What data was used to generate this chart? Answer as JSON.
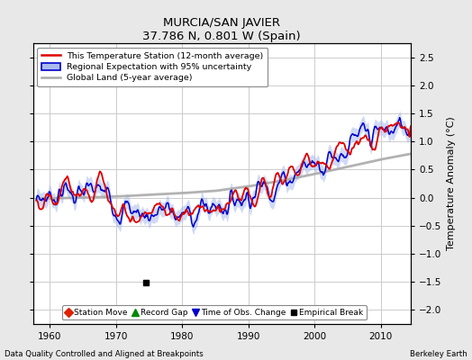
{
  "title": "MURCIA/SAN JAVIER",
  "subtitle": "37.786 N, 0.801 W (Spain)",
  "xlabel_left": "Data Quality Controlled and Aligned at Breakpoints",
  "xlabel_right": "Berkeley Earth",
  "ylabel": "Temperature Anomaly (°C)",
  "xlim": [
    1957.5,
    2014.5
  ],
  "ylim": [
    -2.25,
    2.75
  ],
  "yticks": [
    -2,
    -1.5,
    -1,
    -0.5,
    0,
    0.5,
    1,
    1.5,
    2,
    2.5
  ],
  "xticks": [
    1960,
    1970,
    1980,
    1990,
    2000,
    2010
  ],
  "empirical_break_year": 1974.5,
  "empirical_break_val": -1.52,
  "background_color": "#e8e8e8",
  "plot_bg_color": "#ffffff",
  "grid_color": "#cccccc",
  "red_color": "#dd0000",
  "blue_color": "#0000cc",
  "blue_shade_color": "#aabbee",
  "gray_color": "#aaaaaa",
  "legend_items": [
    "This Temperature Station (12-month average)",
    "Regional Expectation with 95% uncertainty",
    "Global Land (5-year average)"
  ],
  "marker_labels": [
    "Station Move",
    "Record Gap",
    "Time of Obs. Change",
    "Empirical Break"
  ]
}
